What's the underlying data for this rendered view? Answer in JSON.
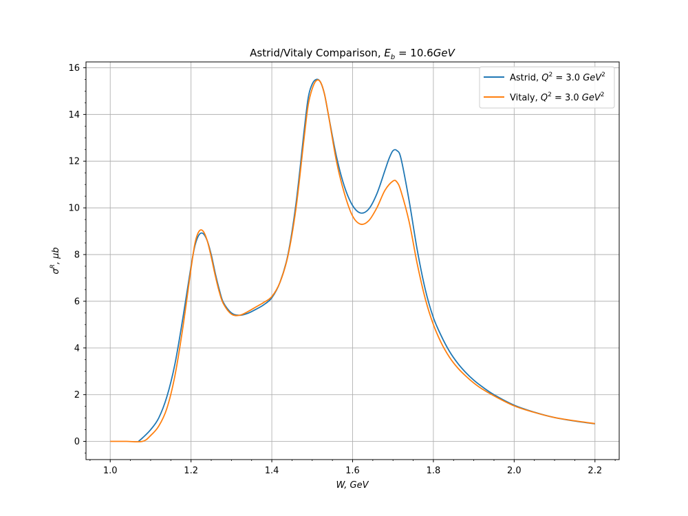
{
  "chart_data": {
    "type": "line",
    "title": "Astrid/Vitaly Comparison, E_b = 10.6GeV",
    "title_parts": {
      "prefix": "Astrid/Vitaly Comparison, ",
      "sym": "E",
      "sub": "b",
      "rest": " = 10.6",
      "unit": "GeV"
    },
    "xlabel": "W, GeV",
    "ylabel": "σ^R, μb",
    "xlim": [
      0.94,
      2.26
    ],
    "ylim": [
      -0.78,
      16.25
    ],
    "x_ticks": [
      1.0,
      1.2,
      1.4,
      1.6,
      1.8,
      2.0,
      2.2
    ],
    "x_tick_labels": [
      "1.0",
      "1.2",
      "1.4",
      "1.6",
      "1.8",
      "2.0",
      "2.2"
    ],
    "y_ticks": [
      0,
      2,
      4,
      6,
      8,
      10,
      12,
      14,
      16
    ],
    "y_tick_labels": [
      "0",
      "2",
      "4",
      "6",
      "8",
      "10",
      "12",
      "14",
      "16"
    ],
    "grid": true,
    "legend_position": "top-right",
    "series": [
      {
        "name": "Astrid, Q² = 3.0 GeV²",
        "legend_prefix": "Astrid, ",
        "color": "#1f77b4",
        "points": [
          [
            1.07,
            0.0
          ],
          [
            1.08,
            0.15
          ],
          [
            1.1,
            0.5
          ],
          [
            1.12,
            1.0
          ],
          [
            1.14,
            1.9
          ],
          [
            1.16,
            3.3
          ],
          [
            1.18,
            5.3
          ],
          [
            1.2,
            7.5
          ],
          [
            1.21,
            8.4
          ],
          [
            1.22,
            8.85
          ],
          [
            1.23,
            8.9
          ],
          [
            1.24,
            8.6
          ],
          [
            1.25,
            8.0
          ],
          [
            1.26,
            7.2
          ],
          [
            1.27,
            6.5
          ],
          [
            1.28,
            5.95
          ],
          [
            1.3,
            5.5
          ],
          [
            1.32,
            5.4
          ],
          [
            1.34,
            5.48
          ],
          [
            1.36,
            5.65
          ],
          [
            1.38,
            5.85
          ],
          [
            1.4,
            6.15
          ],
          [
            1.42,
            6.8
          ],
          [
            1.44,
            8.0
          ],
          [
            1.46,
            10.2
          ],
          [
            1.48,
            13.3
          ],
          [
            1.49,
            14.7
          ],
          [
            1.5,
            15.3
          ],
          [
            1.51,
            15.5
          ],
          [
            1.52,
            15.4
          ],
          [
            1.53,
            14.9
          ],
          [
            1.54,
            14.0
          ],
          [
            1.56,
            12.2
          ],
          [
            1.58,
            10.9
          ],
          [
            1.6,
            10.1
          ],
          [
            1.62,
            9.78
          ],
          [
            1.64,
            9.95
          ],
          [
            1.66,
            10.6
          ],
          [
            1.68,
            11.6
          ],
          [
            1.69,
            12.1
          ],
          [
            1.7,
            12.45
          ],
          [
            1.71,
            12.45
          ],
          [
            1.72,
            12.1
          ],
          [
            1.74,
            10.3
          ],
          [
            1.76,
            8.2
          ],
          [
            1.78,
            6.5
          ],
          [
            1.8,
            5.3
          ],
          [
            1.82,
            4.5
          ],
          [
            1.84,
            3.85
          ],
          [
            1.86,
            3.35
          ],
          [
            1.88,
            2.95
          ],
          [
            1.9,
            2.62
          ],
          [
            1.92,
            2.35
          ],
          [
            1.95,
            2.0
          ],
          [
            2.0,
            1.55
          ],
          [
            2.05,
            1.25
          ],
          [
            2.1,
            1.02
          ],
          [
            2.15,
            0.87
          ],
          [
            2.2,
            0.75
          ]
        ]
      },
      {
        "name": "Vitaly, Q² = 3.0 GeV²",
        "legend_prefix": "Vitaly, ",
        "color": "#ff7f0e",
        "points": [
          [
            1.0,
            0.0
          ],
          [
            1.04,
            0.0
          ],
          [
            1.08,
            0.0
          ],
          [
            1.1,
            0.25
          ],
          [
            1.12,
            0.65
          ],
          [
            1.14,
            1.4
          ],
          [
            1.16,
            2.8
          ],
          [
            1.18,
            4.9
          ],
          [
            1.2,
            7.4
          ],
          [
            1.21,
            8.5
          ],
          [
            1.22,
            9.0
          ],
          [
            1.23,
            9.0
          ],
          [
            1.24,
            8.6
          ],
          [
            1.25,
            7.9
          ],
          [
            1.26,
            7.1
          ],
          [
            1.27,
            6.4
          ],
          [
            1.28,
            5.9
          ],
          [
            1.3,
            5.45
          ],
          [
            1.32,
            5.4
          ],
          [
            1.34,
            5.55
          ],
          [
            1.36,
            5.75
          ],
          [
            1.38,
            5.95
          ],
          [
            1.4,
            6.2
          ],
          [
            1.42,
            6.8
          ],
          [
            1.44,
            7.95
          ],
          [
            1.46,
            10.0
          ],
          [
            1.48,
            13.0
          ],
          [
            1.49,
            14.4
          ],
          [
            1.5,
            15.1
          ],
          [
            1.51,
            15.45
          ],
          [
            1.52,
            15.4
          ],
          [
            1.53,
            14.9
          ],
          [
            1.54,
            14.0
          ],
          [
            1.56,
            12.0
          ],
          [
            1.58,
            10.6
          ],
          [
            1.6,
            9.65
          ],
          [
            1.62,
            9.3
          ],
          [
            1.64,
            9.45
          ],
          [
            1.66,
            10.0
          ],
          [
            1.68,
            10.75
          ],
          [
            1.7,
            11.15
          ],
          [
            1.71,
            11.1
          ],
          [
            1.72,
            10.7
          ],
          [
            1.74,
            9.4
          ],
          [
            1.76,
            7.6
          ],
          [
            1.78,
            6.1
          ],
          [
            1.8,
            5.0
          ],
          [
            1.82,
            4.2
          ],
          [
            1.84,
            3.6
          ],
          [
            1.86,
            3.15
          ],
          [
            1.88,
            2.8
          ],
          [
            1.9,
            2.5
          ],
          [
            1.92,
            2.25
          ],
          [
            1.95,
            1.95
          ],
          [
            2.0,
            1.52
          ],
          [
            2.05,
            1.24
          ],
          [
            2.1,
            1.02
          ],
          [
            2.15,
            0.88
          ],
          [
            2.2,
            0.76
          ]
        ]
      }
    ]
  }
}
